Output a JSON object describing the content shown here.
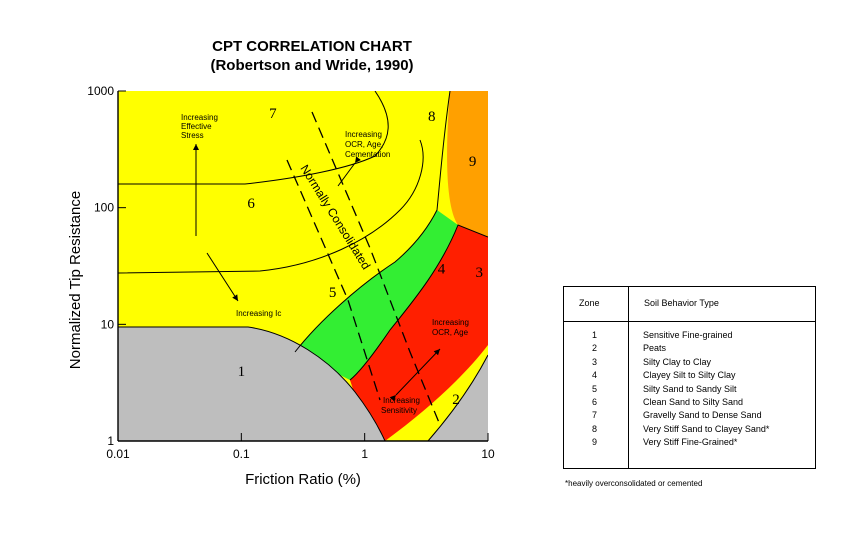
{
  "chart_data": {
    "type": "area",
    "title": "CPT CORRELATION CHART",
    "subtitle": "(Robertson and Wride, 1990)",
    "xlabel": "Friction Ratio (%)",
    "ylabel": "Normalized Tip Resistance",
    "xscale": "log",
    "yscale": "log",
    "xlim": [
      0.01,
      10
    ],
    "ylim": [
      1,
      1000
    ],
    "x_ticks": [
      "0.01",
      "0.1",
      "1",
      "10"
    ],
    "y_ticks": [
      "1",
      "10",
      "100",
      "1000"
    ],
    "grid": false,
    "zone_labels": [
      {
        "label": "1",
        "x": 0.1,
        "y": 4.0
      },
      {
        "label": "2",
        "x": 5.5,
        "y": 2.3
      },
      {
        "label": "3",
        "x": 8.5,
        "y": 28
      },
      {
        "label": "4",
        "x": 4.2,
        "y": 30
      },
      {
        "label": "5",
        "x": 0.55,
        "y": 19
      },
      {
        "label": "6",
        "x": 0.12,
        "y": 110
      },
      {
        "label": "7",
        "x": 0.18,
        "y": 650
      },
      {
        "label": "8",
        "x": 3.5,
        "y": 610
      },
      {
        "label": "9",
        "x": 7.5,
        "y": 250
      }
    ],
    "annotations": {
      "effective_stress": [
        "Increasing",
        "Effective",
        "Stress"
      ],
      "ocr_age_cementation": [
        "Increasing",
        "OCR, Age,",
        "Cementation"
      ],
      "ic": "Increasing Ic",
      "ocr_age": [
        "Increasing",
        "OCR, Age"
      ],
      "sensitivity": [
        "Increasing",
        "Sensitivity"
      ],
      "normally_consolidated": "Normally Consolidated"
    },
    "zone_colors": {
      "1": "#bebebe",
      "2": "#bebebe",
      "3": "#ff1f00",
      "4": "#33ee33",
      "5": "#ffff00",
      "6": "#ffff00",
      "7": "#ffff00",
      "8": "#ffff00",
      "9": "#ffa000"
    }
  },
  "legend": {
    "col_zone": "Zone",
    "col_type": "Soil Behavior Type",
    "rows": [
      {
        "zone": "1",
        "type": "Sensitive Fine-grained"
      },
      {
        "zone": "2",
        "type": "Peats"
      },
      {
        "zone": "3",
        "type": "Silty Clay to Clay"
      },
      {
        "zone": "4",
        "type": "Clayey Silt to Silty Clay"
      },
      {
        "zone": "5",
        "type": "Silty Sand to Sandy Silt"
      },
      {
        "zone": "6",
        "type": "Clean Sand to Silty Sand"
      },
      {
        "zone": "7",
        "type": "Gravelly Sand to Dense Sand"
      },
      {
        "zone": "8",
        "type": "Very Stiff Sand to Clayey Sand*"
      },
      {
        "zone": "9",
        "type": "Very Stiff Fine-Grained*"
      }
    ]
  },
  "footnote": "*heavily overconsolidated or cemented"
}
